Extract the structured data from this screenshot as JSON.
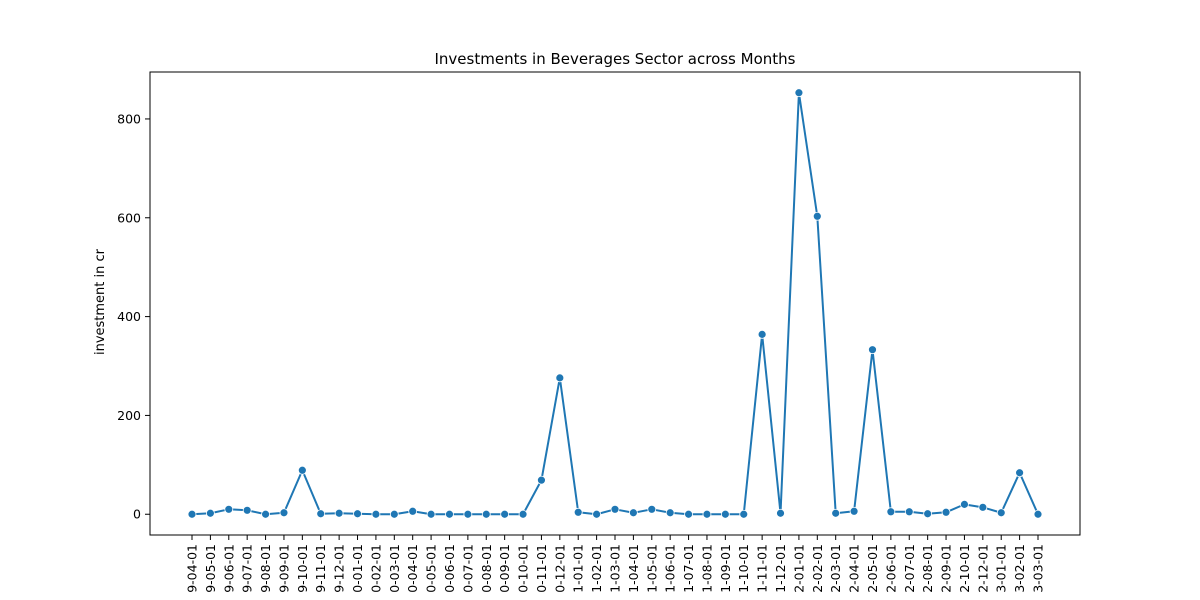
{
  "chart_data": {
    "type": "line",
    "title": "Investments in Beverages Sector across Months",
    "xlabel": "",
    "ylabel": "investment in cr",
    "ylim": [
      -42,
      895
    ],
    "yticks": [
      0,
      200,
      400,
      600,
      800
    ],
    "grid": false,
    "color": "#1f77b4",
    "categories": [
      "9-04-01",
      "9-05-01",
      "9-06-01",
      "9-07-01",
      "9-08-01",
      "9-09-01",
      "9-10-01",
      "9-11-01",
      "9-12-01",
      "0-01-01",
      "0-02-01",
      "0-03-01",
      "0-04-01",
      "0-05-01",
      "0-06-01",
      "0-07-01",
      "0-08-01",
      "0-09-01",
      "0-10-01",
      "0-11-01",
      "0-12-01",
      "1-01-01",
      "1-02-01",
      "1-03-01",
      "1-04-01",
      "1-05-01",
      "1-06-01",
      "1-07-01",
      "1-08-01",
      "1-09-01",
      "1-10-01",
      "1-11-01",
      "1-12-01",
      "2-01-01",
      "2-02-01",
      "2-03-01",
      "2-04-01",
      "2-05-01",
      "2-06-01",
      "2-07-01",
      "2-08-01",
      "2-09-01",
      "2-10-01",
      "2-12-01",
      "3-01-01",
      "3-02-01",
      "3-03-01"
    ],
    "values": [
      0,
      2,
      10,
      8,
      0,
      3,
      89,
      1,
      2,
      1,
      0,
      0,
      6,
      0,
      0,
      0,
      0,
      0,
      0,
      69,
      276,
      4,
      0,
      10,
      3,
      10,
      3,
      0,
      0,
      0,
      0,
      364,
      2,
      853,
      603,
      2,
      6,
      333,
      5,
      5,
      1,
      4,
      20,
      14,
      3,
      84,
      0
    ]
  }
}
